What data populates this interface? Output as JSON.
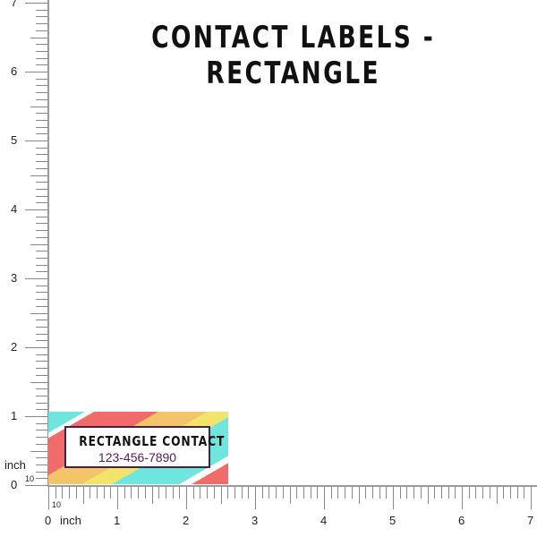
{
  "title": "CONTACT LABELS - RECTANGLE",
  "ruler": {
    "unit": "inch",
    "subdivisions": "10",
    "max": 7,
    "labels": [
      "0",
      "1",
      "2",
      "3",
      "4",
      "5",
      "6",
      "7"
    ]
  },
  "label": {
    "name": "RECTANGLE CONTACT",
    "phone": "123-456-7890",
    "width_in": 2.6,
    "height_in": 1.05,
    "colors": [
      "#6ee6de",
      "#f26b6b",
      "#f3c46a",
      "#f2e46a",
      "#4a1f45"
    ]
  }
}
